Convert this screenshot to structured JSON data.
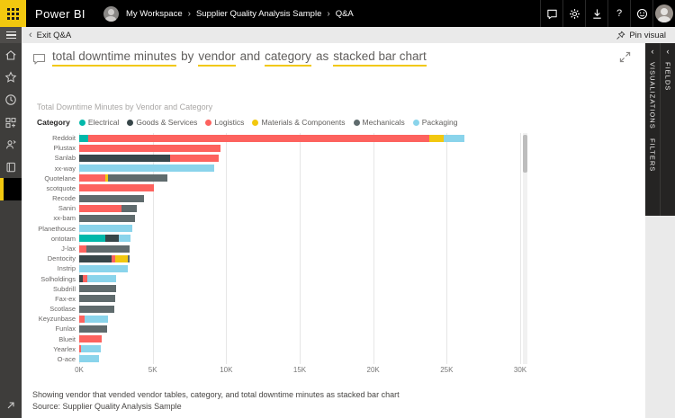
{
  "app": {
    "brand": "Power BI",
    "breadcrumb": [
      "My Workspace",
      "Supplier Quality Analysis Sample",
      "Q&A"
    ],
    "topbar_icons": [
      "comment-icon",
      "gear-icon",
      "download-icon",
      "help-icon",
      "smiley-icon",
      "avatar"
    ]
  },
  "toolbar": {
    "exit_label": "Exit Q&A",
    "pin_label": "Pin visual"
  },
  "sidebar": {
    "items": [
      {
        "icon": "home-icon",
        "name": "home"
      },
      {
        "icon": "star-icon",
        "name": "favorites"
      },
      {
        "icon": "clock-icon",
        "name": "recent"
      },
      {
        "icon": "apps-icon",
        "name": "apps"
      },
      {
        "icon": "people-icon",
        "name": "shared-with-me"
      },
      {
        "icon": "workspace-icon",
        "name": "workspaces"
      },
      {
        "icon": "none",
        "name": "active-workspace",
        "active": true
      }
    ]
  },
  "qna": {
    "tokens": [
      {
        "text": "total downtime minutes",
        "underlined": true
      },
      {
        "text": "by",
        "underlined": false
      },
      {
        "text": "vendor",
        "underlined": true
      },
      {
        "text": "and",
        "underlined": false
      },
      {
        "text": "category",
        "underlined": true
      },
      {
        "text": "as",
        "underlined": false
      },
      {
        "text": "stacked bar chart",
        "underlined": true
      }
    ],
    "underline_color": "#F2C80F"
  },
  "panels": {
    "visualizations": "VISUALIZATIONS",
    "filters": "FILTERS",
    "fields": "FIELDS"
  },
  "footer": {
    "showing": "Showing vendor that vended vendor tables, category, and total downtime minutes as stacked bar chart",
    "source": "Source: Supplier Quality Analysis Sample"
  },
  "chart_data": {
    "type": "bar",
    "stacked": true,
    "orientation": "horizontal",
    "title": "Total Downtime Minutes by Vendor and Category",
    "legend_title": "Category",
    "legend_position": "top",
    "grid": true,
    "xlim": [
      0,
      30000
    ],
    "x_ticks": [
      {
        "value": 0,
        "label": "0K"
      },
      {
        "value": 5000,
        "label": "5K"
      },
      {
        "value": 10000,
        "label": "10K"
      },
      {
        "value": 15000,
        "label": "15K"
      },
      {
        "value": 20000,
        "label": "20K"
      },
      {
        "value": 25000,
        "label": "25K"
      },
      {
        "value": 30000,
        "label": "30K"
      }
    ],
    "categories": [
      "Reddoit",
      "Plustax",
      "Sanlab",
      "xx-way",
      "Quotelane",
      "scotquote",
      "Recode",
      "Sanin",
      "xx-bam",
      "Planethouse",
      "ontotam",
      "J-lax",
      "Dentocity",
      "Instrip",
      "Solholdings",
      "Subdrill",
      "Fax-ex",
      "Scotlase",
      "Keyzunbase",
      "Funlax",
      "Blueit",
      "Yearlex",
      "O-ace"
    ],
    "series": [
      {
        "name": "Electrical",
        "color": "#01B8AA",
        "values": [
          600,
          0,
          0,
          0,
          0,
          0,
          0,
          0,
          0,
          0,
          1750,
          0,
          0,
          0,
          0,
          0,
          0,
          0,
          0,
          0,
          0,
          0,
          0
        ]
      },
      {
        "name": "Goods & Services",
        "color": "#374649",
        "values": [
          0,
          0,
          6200,
          0,
          0,
          0,
          0,
          0,
          0,
          0,
          950,
          0,
          2200,
          0,
          250,
          0,
          0,
          0,
          0,
          0,
          0,
          0,
          0
        ]
      },
      {
        "name": "Logistics",
        "color": "#FD625E",
        "values": [
          23200,
          9600,
          3300,
          0,
          1750,
          5100,
          0,
          2900,
          0,
          0,
          0,
          500,
          250,
          0,
          300,
          0,
          0,
          0,
          350,
          0,
          1550,
          100,
          0
        ]
      },
      {
        "name": "Materials & Components",
        "color": "#F2C80F",
        "values": [
          1000,
          0,
          0,
          0,
          200,
          0,
          0,
          0,
          0,
          0,
          0,
          0,
          850,
          0,
          0,
          0,
          0,
          0,
          0,
          0,
          0,
          0,
          0
        ]
      },
      {
        "name": "Mechanicals",
        "color": "#5F6B6D",
        "values": [
          0,
          0,
          0,
          0,
          4050,
          0,
          4400,
          1000,
          3800,
          0,
          0,
          2950,
          150,
          0,
          0,
          2500,
          2450,
          2400,
          0,
          1900,
          0,
          0,
          0
        ]
      },
      {
        "name": "Packaging",
        "color": "#8AD4EB",
        "values": [
          1400,
          0,
          0,
          9200,
          0,
          0,
          0,
          0,
          0,
          3600,
          800,
          0,
          0,
          3300,
          1950,
          0,
          0,
          0,
          1600,
          0,
          0,
          1350,
          1350
        ]
      }
    ]
  }
}
